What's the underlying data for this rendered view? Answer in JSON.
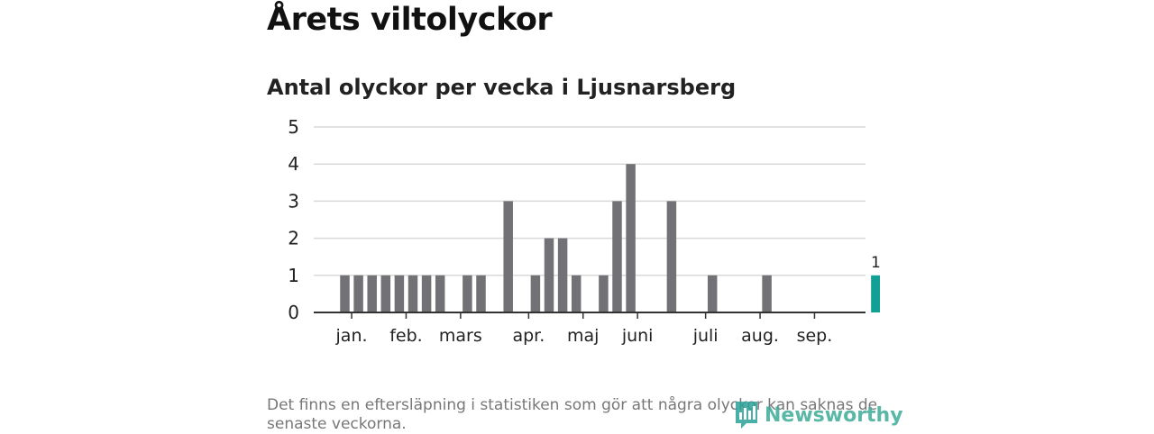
{
  "header": {
    "title": "Årets viltolyckor",
    "subtitle": "Antal olyckor per vecka i Ljusnarsberg"
  },
  "footer": {
    "note": "Det finns en eftersläpning i statistiken som gör att några olyckor kan saknas de senaste veckorna.",
    "brand": "Newsworthy"
  },
  "colors": {
    "bar": "#727276",
    "highlight": "#12a094",
    "grid": "#d9d9d9",
    "axis": "#333333"
  },
  "chart_data": {
    "type": "bar",
    "title": "Antal olyckor per vecka i Ljusnarsberg",
    "xlabel": "",
    "ylabel": "",
    "ylim": [
      0,
      5
    ],
    "yticks": [
      0,
      1,
      2,
      3,
      4,
      5
    ],
    "grid": true,
    "weeks": [
      1,
      2,
      3,
      4,
      5,
      6,
      7,
      8,
      9,
      10,
      11,
      12,
      13,
      14,
      15,
      16,
      17,
      18,
      19,
      20,
      21,
      22,
      23,
      24,
      25,
      26,
      27,
      28,
      29,
      30,
      31,
      32,
      33,
      34,
      35,
      36,
      37,
      38,
      39,
      40
    ],
    "values": [
      1,
      1,
      1,
      1,
      1,
      1,
      1,
      1,
      0,
      1,
      1,
      0,
      3,
      0,
      1,
      2,
      2,
      1,
      0,
      1,
      3,
      4,
      0,
      0,
      3,
      0,
      0,
      1,
      0,
      0,
      0,
      1,
      0,
      0,
      0,
      0,
      0,
      0,
      0,
      1
    ],
    "highlight_index": 39,
    "highlight_label": "1",
    "month_labels": [
      {
        "label": "jan.",
        "week": 1.5
      },
      {
        "label": "feb.",
        "week": 5.5
      },
      {
        "label": "mars",
        "week": 9.5
      },
      {
        "label": "apr.",
        "week": 14.5
      },
      {
        "label": "maj",
        "week": 18.5
      },
      {
        "label": "juni",
        "week": 22.5
      },
      {
        "label": "juli",
        "week": 27.5
      },
      {
        "label": "aug.",
        "week": 31.5
      },
      {
        "label": "sep.",
        "week": 35.5
      }
    ]
  }
}
